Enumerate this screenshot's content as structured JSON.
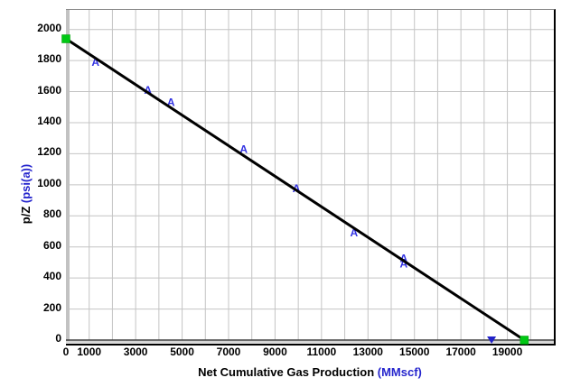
{
  "chart_data": {
    "type": "scatter",
    "title": "",
    "xlabel_main": "Net Cumulative Gas Production ",
    "xlabel_unit": "(MMscf)",
    "ylabel_main": "p/Z ",
    "ylabel_unit": "(psi(a))",
    "xlim": [
      0,
      21000
    ],
    "ylim": [
      0,
      2126
    ],
    "grid": true,
    "x_grid_step": 1000,
    "y_grid_step": 200,
    "x_ticks": [
      0,
      1000,
      3000,
      5000,
      7000,
      9000,
      11000,
      13000,
      15000,
      17000,
      19000
    ],
    "y_ticks": [
      0,
      200,
      400,
      600,
      800,
      1000,
      1200,
      1400,
      1600,
      1800,
      2000
    ],
    "series": [
      {
        "name": "p/Z data points",
        "marker": "letter-A",
        "color": "#3232e2",
        "points": [
          [
            1270,
            1790
          ],
          [
            3530,
            1610
          ],
          [
            4520,
            1530
          ],
          [
            7650,
            1230
          ],
          [
            9920,
            975
          ],
          [
            12400,
            690
          ],
          [
            14540,
            525
          ],
          [
            14540,
            490
          ]
        ]
      }
    ],
    "trend_line": {
      "name": "material-balance-line",
      "color": "#000000",
      "from": [
        0,
        1940
      ],
      "to": [
        19730,
        0
      ]
    },
    "special_markers": [
      {
        "name": "initial-pz-handle",
        "shape": "square",
        "color": "#00c814",
        "x": 0,
        "y": 1940
      },
      {
        "name": "ogip-handle",
        "shape": "square",
        "color": "#00c814",
        "x": 19730,
        "y": 0
      },
      {
        "name": "abandonment-marker",
        "shape": "triangle-down",
        "color": "#2222c8",
        "x": 18320,
        "y": 0
      }
    ],
    "colors": {
      "gridline": "#c4c4c4",
      "axis_band": "#c2c2c2",
      "zero_line": "#3a3a3a",
      "unit_text": "#2525cd",
      "tick_text": "#000000"
    }
  }
}
